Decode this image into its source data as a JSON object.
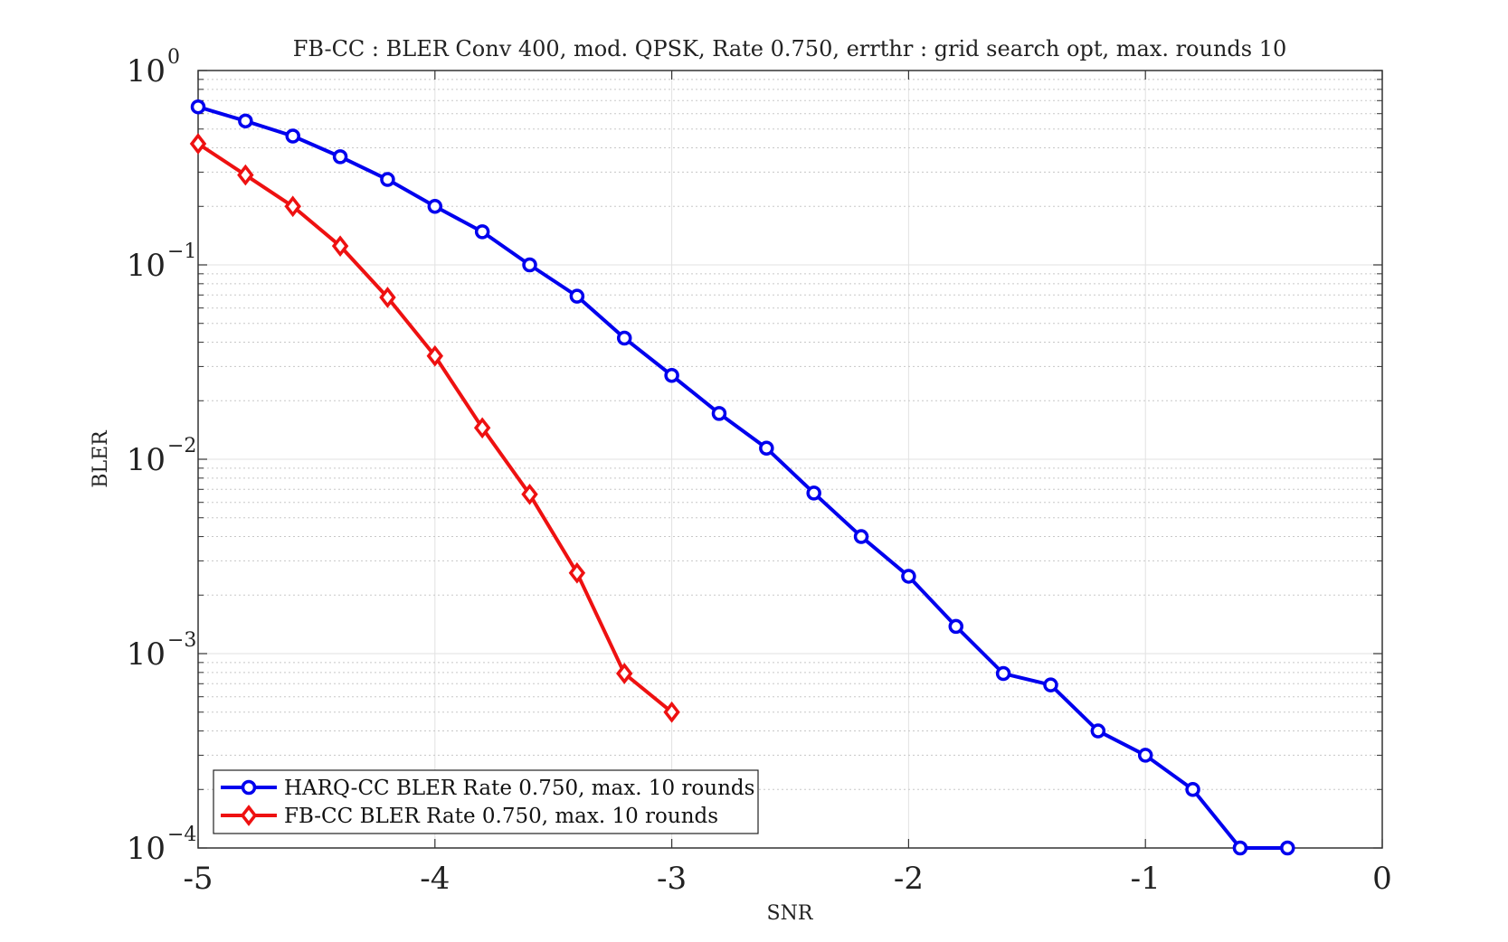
{
  "chart_data": {
    "type": "line",
    "title": "FB-CC : BLER Conv 400, mod. QPSK, Rate 0.750, errthr : grid search opt, max. rounds 10",
    "xlabel": "SNR",
    "ylabel": "BLER",
    "xlim": [
      -5,
      0
    ],
    "ylim": [
      0.0001,
      1
    ],
    "yscale": "log",
    "grid": true,
    "legend_position": "bottom-left",
    "x_ticks": [
      "-5",
      "-4",
      "-3",
      "-2",
      "-1",
      "0"
    ],
    "x_tick_values": [
      -5,
      -4,
      -3,
      -2,
      -1,
      0
    ],
    "y_ticks": [
      {
        "base": "10",
        "exp": "0",
        "value": 1
      },
      {
        "base": "10",
        "exp": "−1",
        "value": 0.1
      },
      {
        "base": "10",
        "exp": "−2",
        "value": 0.01
      },
      {
        "base": "10",
        "exp": "−3",
        "value": 0.001
      },
      {
        "base": "10",
        "exp": "−4",
        "value": 0.0001
      }
    ],
    "series": [
      {
        "name": "HARQ-CC BLER Rate 0.750, max. 10 rounds",
        "color": "#0000ee",
        "marker": "circle",
        "x": [
          -5,
          -4.8,
          -4.6,
          -4.4,
          -4.2,
          -4,
          -3.8,
          -3.6,
          -3.4,
          -3.2,
          -3,
          -2.8,
          -2.6,
          -2.4,
          -2.2,
          -2,
          -1.8,
          -1.6,
          -1.4,
          -1.2,
          -1,
          -0.8,
          -0.6,
          -0.4
        ],
        "values": [
          0.65,
          0.55,
          0.46,
          0.36,
          0.275,
          0.2,
          0.148,
          0.1,
          0.069,
          0.042,
          0.027,
          0.0172,
          0.0114,
          0.0067,
          0.004,
          0.0025,
          0.00138,
          0.00079,
          0.00069,
          0.0004,
          0.0003,
          0.0002,
          0.0001,
          0.0001
        ]
      },
      {
        "name": "FB-CC BLER Rate 0.750, max. 10 rounds",
        "color": "#ee1111",
        "marker": "diamond",
        "x": [
          -5,
          -4.8,
          -4.6,
          -4.4,
          -4.2,
          -4,
          -3.8,
          -3.6,
          -3.4,
          -3.2,
          -3
        ],
        "values": [
          0.42,
          0.29,
          0.2,
          0.125,
          0.068,
          0.034,
          0.0145,
          0.0066,
          0.0026,
          0.00079,
          0.0005
        ]
      }
    ]
  }
}
